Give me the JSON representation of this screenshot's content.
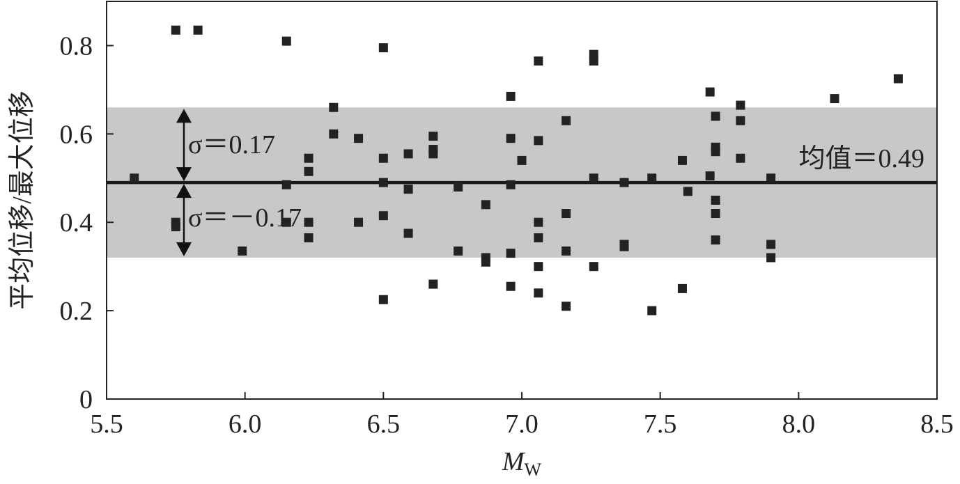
{
  "chart_data": {
    "type": "scatter",
    "xlim": [
      5.5,
      8.5
    ],
    "ylim": [
      0,
      0.9
    ],
    "x_ticks": [
      "5.5",
      "6.0",
      "6.5",
      "7.0",
      "7.5",
      "8.0",
      "8.5"
    ],
    "y_ticks": [
      "0",
      "0.2",
      "0.4",
      "0.6",
      "0.8"
    ],
    "xlabel_main": "M",
    "xlabel_sub": "W",
    "ylabel": "平均位移/最大位移",
    "mean": 0.49,
    "sigma": 0.17,
    "band": [
      0.32,
      0.66
    ],
    "annotations": {
      "mean_label": "均值＝0.49",
      "sigma_plus_label": "σ＝0.17",
      "sigma_minus_label": "σ＝－0.17"
    },
    "grid": false,
    "marker": "square",
    "colors": {
      "marker": "#222222",
      "band": "#c8c8c8",
      "mean_line": "#1a1a1a",
      "axis": "#222222"
    },
    "points": [
      [
        5.6,
        0.5
      ],
      [
        5.75,
        0.835
      ],
      [
        5.83,
        0.835
      ],
      [
        5.75,
        0.4
      ],
      [
        5.75,
        0.39
      ],
      [
        5.99,
        0.335
      ],
      [
        6.15,
        0.81
      ],
      [
        6.15,
        0.485
      ],
      [
        6.15,
        0.4
      ],
      [
        6.23,
        0.545
      ],
      [
        6.23,
        0.515
      ],
      [
        6.23,
        0.4
      ],
      [
        6.23,
        0.365
      ],
      [
        6.32,
        0.66
      ],
      [
        6.32,
        0.6
      ],
      [
        6.41,
        0.59
      ],
      [
        6.41,
        0.4
      ],
      [
        6.5,
        0.795
      ],
      [
        6.5,
        0.545
      ],
      [
        6.5,
        0.49
      ],
      [
        6.5,
        0.415
      ],
      [
        6.5,
        0.225
      ],
      [
        6.59,
        0.555
      ],
      [
        6.59,
        0.475
      ],
      [
        6.59,
        0.375
      ],
      [
        6.68,
        0.595
      ],
      [
        6.68,
        0.565
      ],
      [
        6.68,
        0.555
      ],
      [
        6.68,
        0.26
      ],
      [
        6.77,
        0.48
      ],
      [
        6.77,
        0.335
      ],
      [
        6.87,
        0.44
      ],
      [
        6.87,
        0.32
      ],
      [
        6.87,
        0.31
      ],
      [
        6.96,
        0.685
      ],
      [
        6.96,
        0.59
      ],
      [
        6.96,
        0.485
      ],
      [
        6.96,
        0.33
      ],
      [
        6.96,
        0.255
      ],
      [
        7.0,
        0.54
      ],
      [
        7.06,
        0.765
      ],
      [
        7.06,
        0.585
      ],
      [
        7.06,
        0.4
      ],
      [
        7.06,
        0.365
      ],
      [
        7.06,
        0.3
      ],
      [
        7.06,
        0.24
      ],
      [
        7.16,
        0.63
      ],
      [
        7.16,
        0.42
      ],
      [
        7.16,
        0.335
      ],
      [
        7.16,
        0.21
      ],
      [
        7.26,
        0.78
      ],
      [
        7.26,
        0.765
      ],
      [
        7.26,
        0.5
      ],
      [
        7.26,
        0.3
      ],
      [
        7.37,
        0.49
      ],
      [
        7.37,
        0.35
      ],
      [
        7.37,
        0.345
      ],
      [
        7.47,
        0.5
      ],
      [
        7.47,
        0.2
      ],
      [
        7.58,
        0.54
      ],
      [
        7.58,
        0.25
      ],
      [
        7.6,
        0.47
      ],
      [
        7.68,
        0.695
      ],
      [
        7.68,
        0.505
      ],
      [
        7.7,
        0.64
      ],
      [
        7.7,
        0.57
      ],
      [
        7.7,
        0.56
      ],
      [
        7.7,
        0.45
      ],
      [
        7.7,
        0.42
      ],
      [
        7.7,
        0.36
      ],
      [
        7.79,
        0.665
      ],
      [
        7.79,
        0.63
      ],
      [
        7.79,
        0.545
      ],
      [
        7.9,
        0.5
      ],
      [
        7.9,
        0.35
      ],
      [
        7.9,
        0.32
      ],
      [
        8.13,
        0.68
      ],
      [
        8.36,
        0.725
      ]
    ]
  }
}
